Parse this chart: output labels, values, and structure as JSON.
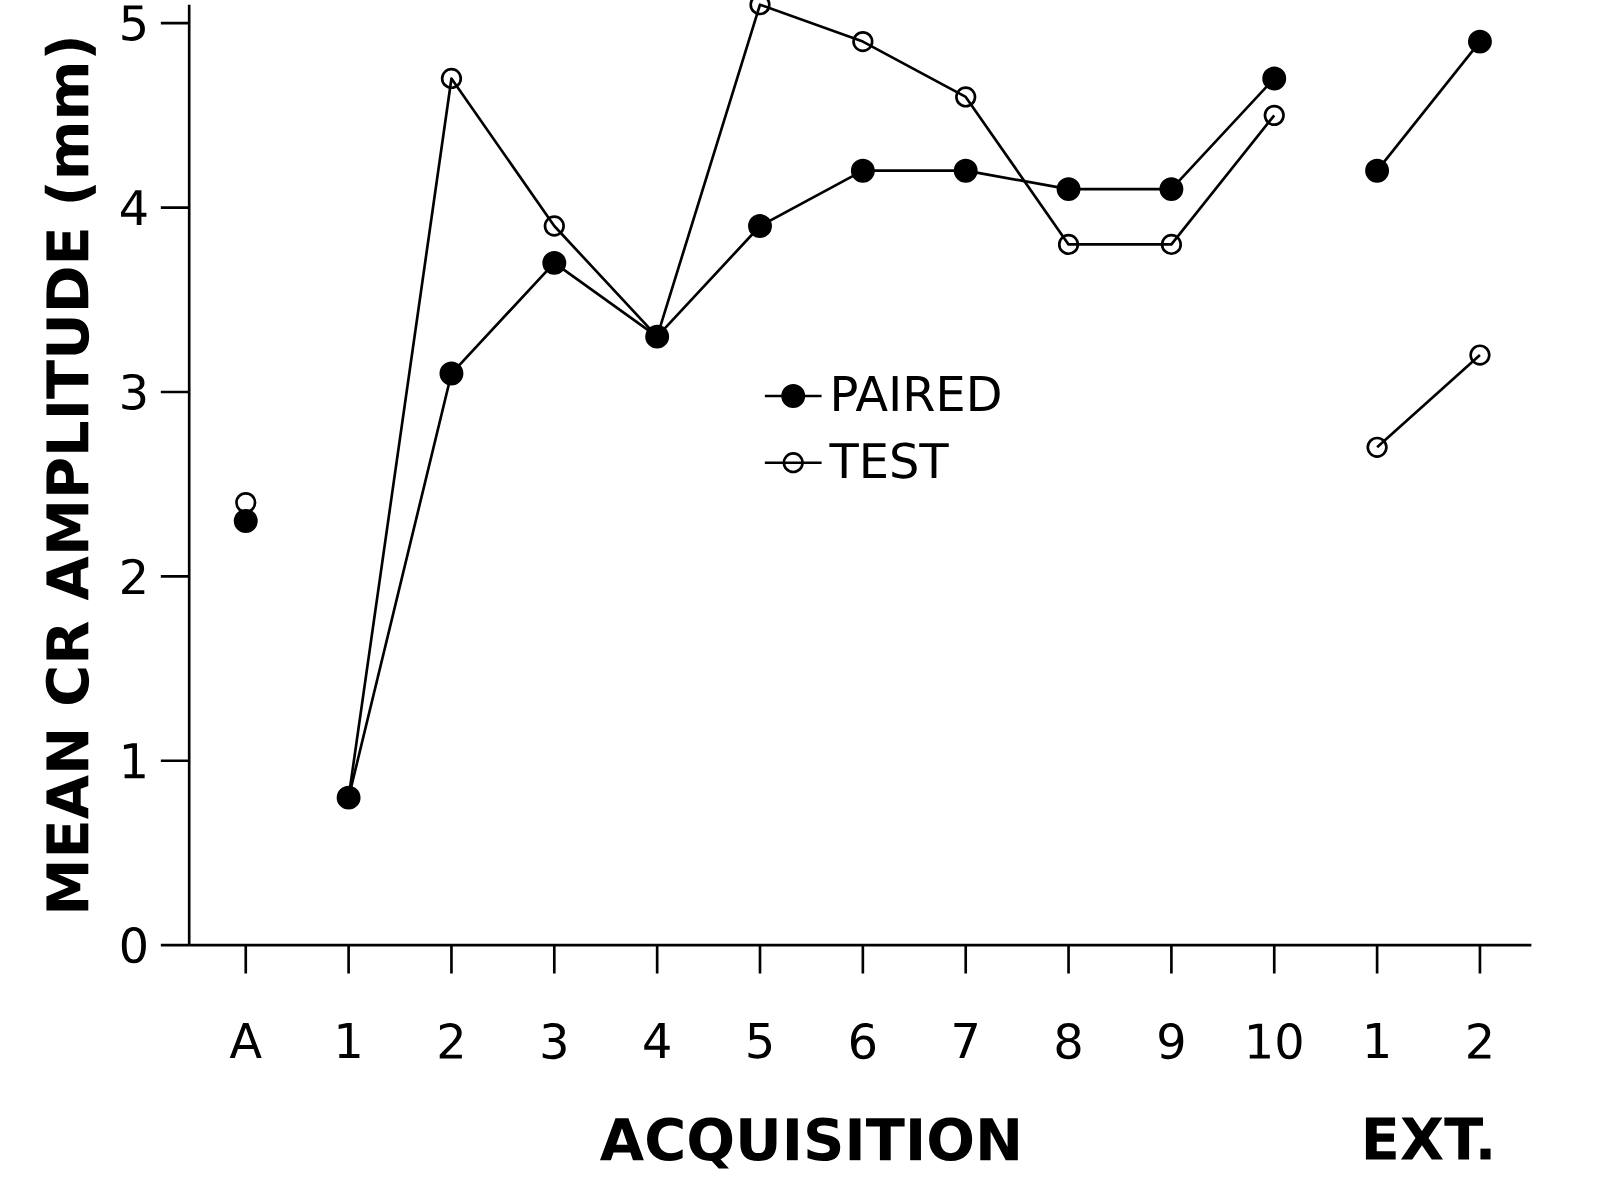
{
  "chart_data": {
    "type": "line",
    "ylabel": "MEAN CR AMPLITUDE (mm)",
    "xlabel": "ACQUISITION",
    "annotations": [
      "EXT."
    ],
    "categories": [
      "A",
      "1",
      "2",
      "3",
      "4",
      "5",
      "6",
      "7",
      "8",
      "9",
      "10",
      "1",
      "2"
    ],
    "series": [
      {
        "name": "PAIRED",
        "color": "#000000",
        "marker": "circle",
        "values": [
          null,
          0.8,
          3.1,
          3.7,
          3.3,
          3.9,
          4.2,
          4.2,
          4.1,
          4.1,
          4.7,
          null,
          null
        ]
      },
      {
        "name": "TEST",
        "color": "#000000",
        "marker": "circle_open",
        "values": [
          null,
          0.8,
          4.7,
          3.9,
          3.3,
          5.1,
          4.9,
          4.6,
          3.8,
          3.8,
          4.5,
          null,
          null
        ]
      },
      {
        "type": "scatter",
        "color": "#000000",
        "marker": "circle",
        "values": [
          2.3,
          null,
          null,
          null,
          null,
          null,
          null,
          null,
          null,
          null,
          null,
          null,
          null
        ]
      },
      {
        "type": "scatter",
        "color": "#000000",
        "marker": "circle_open",
        "values": [
          2.4,
          null,
          null,
          null,
          null,
          null,
          null,
          null,
          null,
          null,
          null,
          null,
          null
        ]
      },
      {
        "color": "#000000",
        "marker": "circle",
        "values": [
          null,
          null,
          null,
          null,
          null,
          null,
          null,
          null,
          null,
          null,
          null,
          4.2,
          4.9
        ]
      },
      {
        "color": "#000000",
        "marker": "circle_open",
        "values": [
          null,
          null,
          null,
          null,
          null,
          null,
          null,
          null,
          null,
          null,
          null,
          2.7,
          3.2
        ]
      }
    ],
    "ylim": [
      0,
      5.1
    ],
    "yticks": [
      0,
      1,
      2,
      3,
      4,
      5
    ],
    "legend": "top",
    "grid": false
  }
}
